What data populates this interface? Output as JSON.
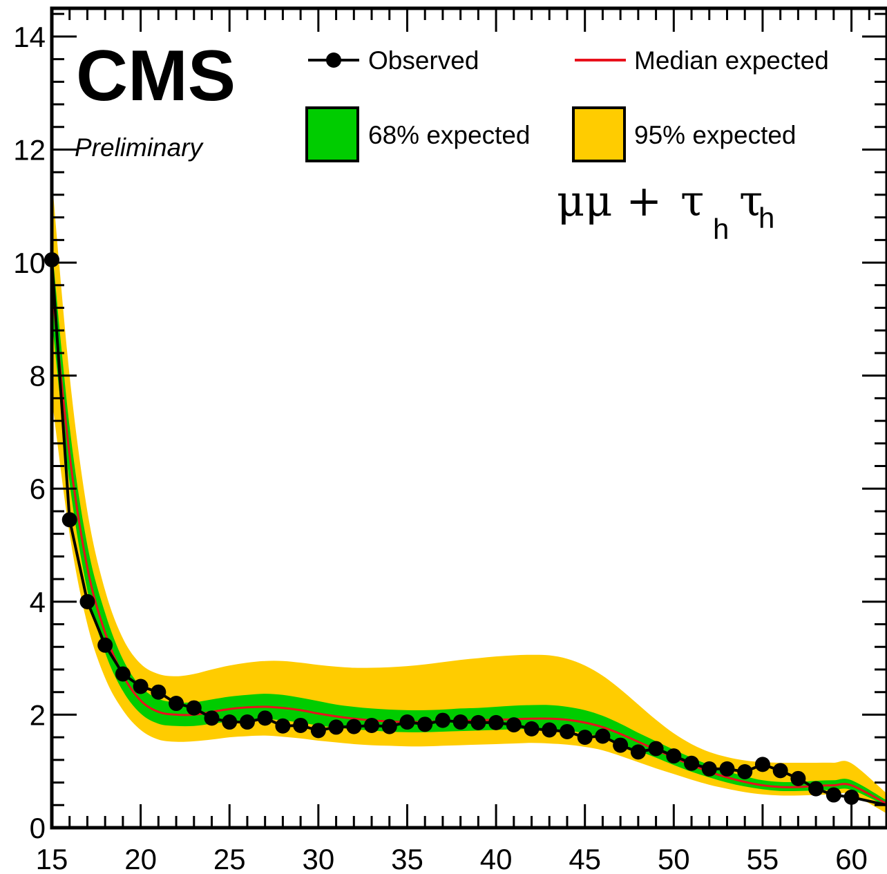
{
  "chart_data": {
    "type": "line",
    "title": "",
    "xlabel": "",
    "ylabel": "",
    "xlim": [
      15,
      62
    ],
    "ylim": [
      0,
      14.5
    ],
    "x_ticks": [
      15,
      20,
      25,
      30,
      35,
      40,
      45,
      50,
      55,
      60
    ],
    "y_ticks": [
      0,
      2,
      4,
      6,
      8,
      10,
      12,
      14
    ],
    "grid": false,
    "legend_position": "top",
    "experiment_label": "CMS",
    "status_label": "Preliminary",
    "channel_label": {
      "main": "μμ + ",
      "tau": "τ",
      "sub": "h"
    },
    "legend": {
      "observed": "Observed",
      "median": "Median expected",
      "band68": "68% expected",
      "band95": "95% expected"
    },
    "colors": {
      "observed": "#000000",
      "median": "#e8111c",
      "band68": "#00cc00",
      "band95": "#ffcc00"
    },
    "x": [
      15,
      16,
      17,
      18,
      19,
      20,
      21,
      22,
      23,
      24,
      25,
      26,
      27,
      28,
      29,
      30,
      31,
      32,
      33,
      34,
      35,
      36,
      37,
      38,
      39,
      40,
      41,
      42,
      43,
      44,
      45,
      46,
      47,
      48,
      49,
      50,
      51,
      52,
      53,
      54,
      55,
      56,
      57,
      58,
      59,
      60,
      62
    ],
    "observed": [
      10.05,
      5.45,
      4.0,
      3.23,
      2.72,
      2.5,
      2.4,
      2.2,
      2.12,
      1.94,
      1.87,
      1.87,
      1.94,
      1.8,
      1.81,
      1.72,
      1.78,
      1.79,
      1.81,
      1.79,
      1.87,
      1.83,
      1.9,
      1.87,
      1.86,
      1.86,
      1.82,
      1.75,
      1.73,
      1.7,
      1.6,
      1.62,
      1.46,
      1.34,
      1.4,
      1.27,
      1.14,
      1.04,
      1.04,
      0.99,
      1.12,
      1.01,
      0.87,
      0.69,
      0.58,
      0.54,
      0.4
    ],
    "median": [
      9.6,
      6.6,
      4.6,
      3.45,
      2.7,
      2.25,
      2.05,
      2.0,
      2.0,
      2.05,
      2.1,
      2.13,
      2.14,
      2.12,
      2.08,
      2.02,
      1.97,
      1.93,
      1.9,
      1.88,
      1.87,
      1.87,
      1.88,
      1.89,
      1.9,
      1.91,
      1.92,
      1.93,
      1.93,
      1.91,
      1.86,
      1.78,
      1.66,
      1.52,
      1.38,
      1.24,
      1.11,
      0.99,
      0.89,
      0.81,
      0.75,
      0.72,
      0.72,
      0.74,
      0.75,
      0.75,
      0.42
    ],
    "band68_low": [
      9.0,
      6.1,
      4.2,
      3.1,
      2.42,
      2.02,
      1.84,
      1.8,
      1.8,
      1.84,
      1.88,
      1.91,
      1.92,
      1.9,
      1.86,
      1.81,
      1.77,
      1.74,
      1.72,
      1.7,
      1.69,
      1.69,
      1.7,
      1.71,
      1.72,
      1.73,
      1.74,
      1.75,
      1.74,
      1.72,
      1.67,
      1.6,
      1.49,
      1.36,
      1.24,
      1.11,
      0.99,
      0.89,
      0.8,
      0.73,
      0.68,
      0.65,
      0.65,
      0.66,
      0.67,
      0.67,
      0.38
    ],
    "band68_high": [
      10.3,
      7.1,
      5.0,
      3.8,
      2.98,
      2.5,
      2.28,
      2.22,
      2.22,
      2.27,
      2.32,
      2.35,
      2.37,
      2.35,
      2.3,
      2.24,
      2.18,
      2.14,
      2.11,
      2.09,
      2.08,
      2.08,
      2.09,
      2.11,
      2.12,
      2.14,
      2.16,
      2.17,
      2.17,
      2.14,
      2.08,
      1.98,
      1.84,
      1.68,
      1.53,
      1.38,
      1.24,
      1.11,
      1.0,
      0.91,
      0.84,
      0.81,
      0.81,
      0.83,
      0.84,
      0.84,
      0.48
    ],
    "band95_low": [
      7.6,
      5.2,
      3.6,
      2.65,
      2.08,
      1.73,
      1.56,
      1.52,
      1.53,
      1.56,
      1.6,
      1.62,
      1.63,
      1.61,
      1.58,
      1.54,
      1.51,
      1.48,
      1.46,
      1.45,
      1.44,
      1.44,
      1.45,
      1.46,
      1.47,
      1.48,
      1.49,
      1.5,
      1.49,
      1.47,
      1.43,
      1.37,
      1.27,
      1.16,
      1.05,
      0.95,
      0.85,
      0.76,
      0.69,
      0.63,
      0.59,
      0.57,
      0.57,
      0.58,
      0.59,
      0.59,
      0.25
    ],
    "band95_high": [
      11.5,
      8.0,
      5.6,
      4.2,
      3.35,
      2.9,
      2.72,
      2.68,
      2.72,
      2.8,
      2.87,
      2.92,
      2.95,
      2.95,
      2.92,
      2.88,
      2.85,
      2.83,
      2.83,
      2.84,
      2.86,
      2.89,
      2.93,
      2.97,
      3.0,
      3.03,
      3.05,
      3.06,
      3.05,
      2.99,
      2.87,
      2.69,
      2.45,
      2.18,
      1.91,
      1.67,
      1.48,
      1.34,
      1.25,
      1.19,
      1.16,
      1.15,
      1.15,
      1.15,
      1.15,
      1.14,
      0.6
    ]
  }
}
